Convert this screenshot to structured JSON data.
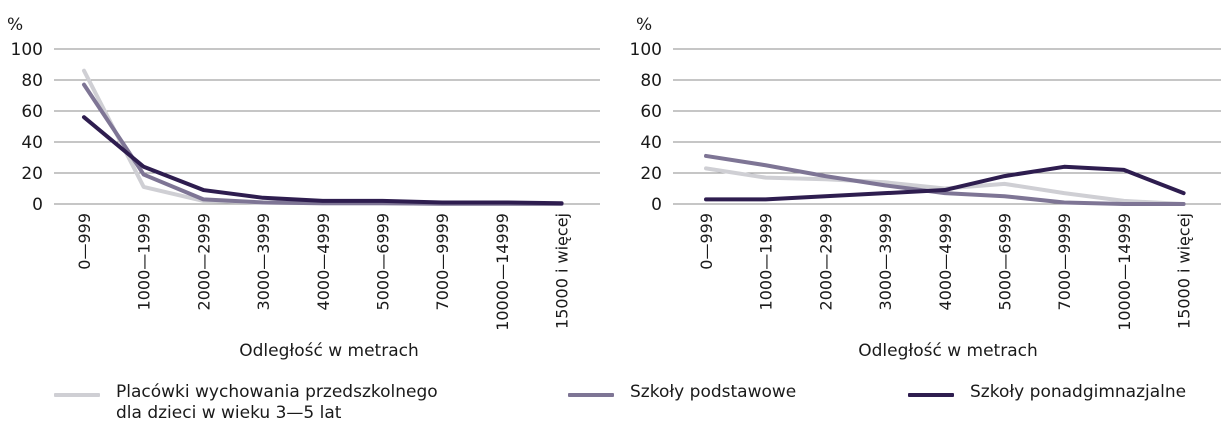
{
  "chart_data": [
    {
      "type": "line",
      "ylabel": "%",
      "xlabel": "Odległość w metrach",
      "ylim": [
        0,
        100
      ],
      "yticks": [
        0,
        20,
        40,
        60,
        80,
        100
      ],
      "grid": true,
      "categories": [
        "0—999",
        "1000—1999",
        "2000—2999",
        "3000—3999",
        "4000—4999",
        "5000—6999",
        "7000—9999",
        "10000—14999",
        "15000 i więcej"
      ],
      "series": [
        {
          "name": "Placówki wychowania przedszkolnego dla dzieci w wieku 3—5 lat",
          "values": [
            86,
            11,
            2,
            1,
            0.5,
            0.5,
            0.2,
            0.2,
            0.1
          ]
        },
        {
          "name": "Szkoły podstawowe",
          "values": [
            77,
            19,
            3,
            1,
            0.5,
            0.5,
            0.2,
            0.2,
            0.1
          ]
        },
        {
          "name": "Szkoły ponadgimnazjalne",
          "values": [
            56,
            24,
            9,
            4,
            2,
            2,
            1,
            1,
            0.5
          ]
        }
      ]
    },
    {
      "type": "line",
      "ylabel": "%",
      "xlabel": "Odległość w metrach",
      "ylim": [
        0,
        100
      ],
      "yticks": [
        0,
        20,
        40,
        60,
        80,
        100
      ],
      "grid": true,
      "categories": [
        "0—999",
        "1000—1999",
        "2000—2999",
        "3000—3999",
        "4000—4999",
        "5000—6999",
        "7000—9999",
        "10000—14999",
        "15000 i więcej"
      ],
      "series": [
        {
          "name": "Placówki wychowania przedszkolnego dla dzieci w wieku 3—5 lat",
          "values": [
            23,
            17,
            16,
            14,
            10,
            13,
            7,
            2,
            0
          ]
        },
        {
          "name": "Szkoły podstawowe",
          "values": [
            31,
            25,
            18,
            12,
            7,
            5,
            1,
            0,
            0
          ]
        },
        {
          "name": "Szkoły ponadgimnazjalne",
          "values": [
            3,
            3,
            5,
            7,
            9,
            18,
            24,
            22,
            7
          ]
        }
      ]
    }
  ],
  "legend": [
    {
      "lines": [
        "Placówki wychowania przedszkolnego",
        "dla dzieci w wieku 3—5 lat"
      ],
      "color": "#cfcfd4"
    },
    {
      "lines": [
        "Szkoły podstawowe"
      ],
      "color": "#7e7595"
    },
    {
      "lines": [
        "Szkoły ponadgimnazjalne"
      ],
      "color": "#2e1d4f"
    }
  ],
  "colors": {
    "grid": "#8c8c8c",
    "text": "#1a1a1a"
  }
}
